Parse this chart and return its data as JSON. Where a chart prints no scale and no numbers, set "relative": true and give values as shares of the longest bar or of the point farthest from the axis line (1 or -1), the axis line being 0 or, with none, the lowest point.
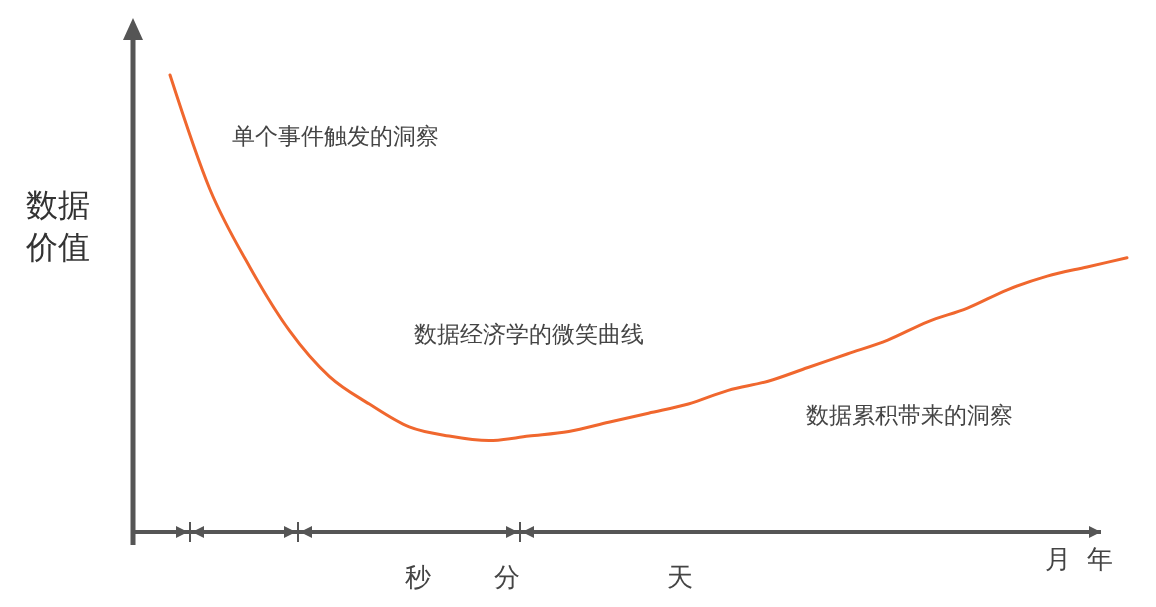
{
  "chart_data": {
    "type": "line",
    "relative": true,
    "ylabel": "数据价值",
    "categories": [
      null,
      null,
      null,
      null,
      null,
      null,
      null,
      null,
      null,
      null,
      null,
      null,
      null,
      null,
      null,
      null,
      null,
      null,
      null,
      null,
      null,
      null,
      null,
      null,
      null
    ],
    "series": [
      {
        "color": "#f0672e",
        "values": [
          1,
          0.75,
          0.58,
          0.44,
          0.34,
          0.28,
          0.23,
          0.21,
          0.2,
          0.21,
          0.22,
          0.24,
          0.26,
          0.28,
          0.31,
          0.33,
          0.36,
          0.39,
          0.42,
          0.46,
          0.49,
          0.53,
          0.56,
          0.58,
          0.6
        ]
      }
    ],
    "annotations": [
      "单个事件触发的洞察",
      "数据经济学的微笑曲线",
      "数据累积带来的洞察",
      "秒",
      "分",
      "天",
      "月",
      "年"
    ]
  }
}
